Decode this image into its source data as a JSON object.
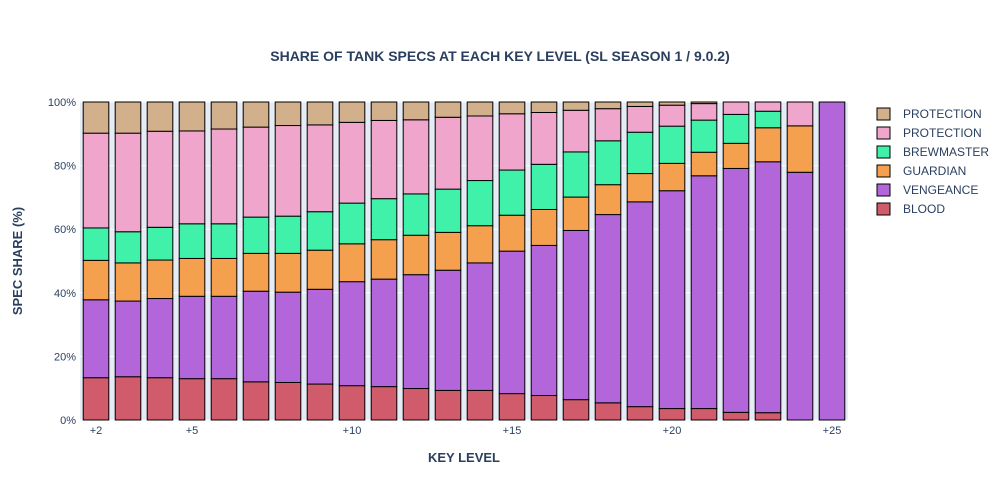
{
  "chart_data": {
    "type": "bar",
    "stacked": true,
    "title": "SHARE OF TANK SPECS AT EACH KEY LEVEL (SL SEASON 1 / 9.0.2)",
    "xlabel": "KEY LEVEL",
    "ylabel": "SPEC SHARE (%)",
    "ylim": [
      0,
      100
    ],
    "y_ticks": [
      "0%",
      "20%",
      "40%",
      "60%",
      "80%",
      "100%"
    ],
    "x": [
      2,
      3,
      4,
      5,
      6,
      7,
      8,
      9,
      10,
      11,
      12,
      13,
      14,
      15,
      16,
      17,
      18,
      19,
      20,
      21,
      22,
      23,
      24,
      25
    ],
    "x_ticks": [
      "+2",
      "+5",
      "+10",
      "+15",
      "+20",
      "+25"
    ],
    "x_tick_values": [
      2,
      5,
      10,
      15,
      20,
      25
    ],
    "legend_position": "right",
    "grid": true,
    "series": [
      {
        "name": "BLOOD",
        "color": "#cf5b6b",
        "values": [
          13.3,
          13.6,
          13.3,
          13.0,
          13.0,
          12.0,
          11.8,
          11.3,
          10.8,
          10.5,
          9.9,
          9.3,
          9.3,
          8.3,
          7.7,
          6.4,
          5.4,
          4.2,
          3.6,
          3.6,
          2.4,
          2.3,
          0,
          0
        ]
      },
      {
        "name": "VENGEANCE",
        "color": "#b266d9",
        "values": [
          24.5,
          23.8,
          24.9,
          25.9,
          25.9,
          28.5,
          28.4,
          29.8,
          32.7,
          33.8,
          35.8,
          37.8,
          40.1,
          44.8,
          47.2,
          53.2,
          59.2,
          64.4,
          68.5,
          73.2,
          76.7,
          78.9,
          77.9,
          100
        ]
      },
      {
        "name": "GUARDIAN",
        "color": "#f4a04f",
        "values": [
          12.4,
          12.0,
          12.1,
          11.9,
          11.9,
          11.9,
          12.2,
          12.3,
          11.9,
          12.4,
          12.4,
          11.9,
          11.7,
          11.3,
          11.3,
          10.5,
          9.4,
          8.9,
          8.6,
          7.4,
          7.9,
          10.7,
          14.6,
          0
        ]
      },
      {
        "name": "BREWMASTER",
        "color": "#40f2a9",
        "values": [
          10.2,
          9.8,
          10.3,
          10.9,
          10.9,
          11.4,
          11.7,
          12.1,
          12.8,
          12.9,
          13.0,
          13.6,
          14.2,
          14.2,
          14.2,
          14.2,
          13.8,
          13.0,
          11.7,
          10.1,
          9.1,
          5.2,
          0,
          0
        ]
      },
      {
        "name": "PROTECTION",
        "color": "#f0a6cc",
        "values": [
          29.8,
          31.0,
          30.2,
          29.2,
          29.8,
          28.3,
          28.5,
          27.3,
          25.4,
          24.6,
          23.3,
          22.6,
          20.3,
          17.7,
          16.3,
          13.1,
          10.1,
          8.1,
          6.6,
          5.2,
          3.9,
          2.9,
          7.5,
          0
        ]
      },
      {
        "name": "PROTECTION",
        "color": "#d2b08c",
        "values": [
          9.8,
          9.8,
          9.2,
          9.1,
          8.5,
          7.9,
          7.4,
          7.2,
          6.4,
          5.8,
          5.6,
          4.8,
          4.4,
          3.7,
          3.3,
          2.6,
          2.1,
          1.4,
          1.0,
          0.5,
          0,
          0,
          0,
          0
        ]
      }
    ]
  }
}
